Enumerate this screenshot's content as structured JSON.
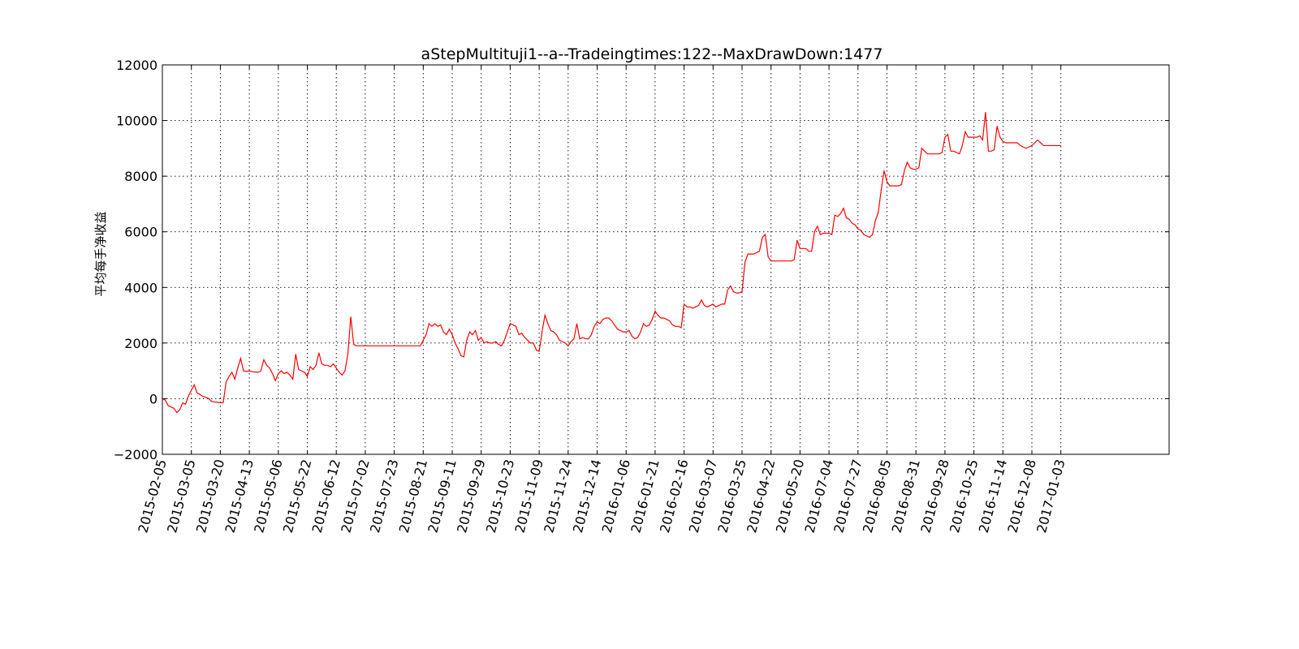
{
  "chart_data": {
    "type": "line",
    "title": "aStepMultituji1--a--Tradeingtimes:122--MaxDrawDown:1477",
    "xlabel": "",
    "ylabel": "平均每手净收益",
    "ylim": [
      -2000,
      12000
    ],
    "yticks": [
      -2000,
      0,
      2000,
      4000,
      6000,
      8000,
      10000,
      12000
    ],
    "ytick_labels": [
      "−2000",
      "0",
      "2000",
      "4000",
      "6000",
      "8000",
      "10000",
      "12000"
    ],
    "xlim": [
      0,
      35
    ],
    "xtick_labels": [
      "2015-02-05",
      "2015-03-05",
      "2015-03-20",
      "2015-04-13",
      "2015-05-06",
      "2015-05-22",
      "2015-06-12",
      "2015-07-02",
      "2015-07-23",
      "2015-08-21",
      "2015-09-11",
      "2015-09-29",
      "2015-10-23",
      "2015-11-09",
      "2015-11-24",
      "2015-12-14",
      "2016-01-06",
      "2016-01-21",
      "2016-02-16",
      "2016-03-07",
      "2016-03-25",
      "2016-04-22",
      "2016-05-20",
      "2016-07-04",
      "2016-07-27",
      "2016-08-05",
      "2016-08-31",
      "2016-09-28",
      "2016-10-25",
      "2016-11-14",
      "2016-12-08",
      "2017-01-03"
    ],
    "grid": true,
    "series": [
      {
        "name": "",
        "color": "#ff0000",
        "x": [
          0,
          0.1,
          0.2,
          0.3,
          0.4,
          0.5,
          0.6,
          0.7,
          0.8,
          0.9,
          1.0,
          1.1,
          1.2,
          1.3,
          1.4,
          1.5,
          1.6,
          1.7,
          1.8,
          1.9,
          2.0,
          2.1,
          2.2,
          2.3,
          2.4,
          2.5,
          2.6,
          2.7,
          2.8,
          2.9,
          3.0,
          3.1,
          3.2,
          3.3,
          3.4,
          3.5,
          3.6,
          3.7,
          3.8,
          3.9,
          4.0,
          4.1,
          4.2,
          4.3,
          4.4,
          4.5,
          4.6,
          4.7,
          4.8,
          4.9,
          5.0,
          5.1,
          5.2,
          5.3,
          5.4,
          5.5,
          5.6,
          5.7,
          5.8,
          5.9,
          6.0,
          6.1,
          6.2,
          6.3,
          6.4,
          6.5,
          6.6,
          6.7,
          6.8,
          6.9,
          7.0,
          7.05,
          7.1,
          7.2,
          7.5,
          8.0,
          8.5,
          8.9,
          9.0,
          9.1,
          9.2,
          9.3,
          9.4,
          9.5,
          9.6,
          9.7,
          9.8,
          9.9,
          10.0,
          10.1,
          10.2,
          10.3,
          10.4,
          10.5,
          10.6,
          10.7,
          10.8,
          10.9,
          11.0,
          11.1,
          11.2,
          11.3,
          11.4,
          11.5,
          11.6,
          11.7,
          11.8,
          11.9,
          12.0,
          12.1,
          12.2,
          12.3,
          12.4,
          12.5,
          12.6,
          12.7,
          12.8,
          12.9,
          13.0,
          13.1,
          13.2,
          13.3,
          13.4,
          13.5,
          13.6,
          13.7,
          13.8,
          13.9,
          14.0,
          14.1,
          14.2,
          14.3,
          14.4,
          14.5,
          14.6,
          14.7,
          14.8,
          14.9,
          15.0,
          15.1,
          15.2,
          15.3,
          15.4,
          15.5,
          15.6,
          15.7,
          15.8,
          15.9,
          16.0,
          16.1,
          16.2,
          16.3,
          16.4,
          16.5,
          16.6,
          16.7,
          16.8,
          16.9,
          17.0,
          17.1,
          17.2,
          17.3,
          17.4,
          17.5,
          17.6,
          17.7,
          17.8,
          17.9,
          18.0,
          18.1,
          18.2,
          18.3,
          18.4,
          18.5,
          18.6,
          18.7,
          18.8,
          18.9,
          19.0,
          19.1,
          19.2,
          19.3,
          19.4,
          19.5,
          19.6,
          19.7,
          19.8,
          19.9,
          20.0,
          20.1,
          20.2,
          20.3,
          20.4,
          20.5,
          20.6,
          20.7,
          20.8,
          20.9,
          21.0,
          21.1,
          21.2,
          21.3,
          21.4,
          21.5,
          21.6,
          21.7,
          21.8,
          21.9,
          22.0,
          22.1,
          22.2,
          22.3,
          22.4,
          22.5,
          22.6,
          22.7,
          22.8,
          22.9,
          23.0,
          23.1,
          23.2,
          23.3,
          23.4,
          23.5,
          23.6,
          23.7,
          23.8,
          23.9,
          24.0,
          24.1,
          24.2,
          24.3,
          24.4,
          24.5,
          24.6,
          24.7,
          24.8,
          24.9,
          25.0,
          25.1,
          25.2,
          25.3,
          25.4,
          25.5,
          25.6,
          25.7,
          25.8,
          25.9,
          26.0,
          26.1,
          26.2,
          26.3,
          26.4,
          26.5,
          26.6,
          26.7,
          26.8,
          26.9,
          27.0,
          27.1,
          27.2,
          27.3,
          27.4,
          27.5,
          27.6,
          27.7,
          27.8,
          27.9,
          28.0,
          28.1,
          28.2,
          28.3,
          28.4,
          28.5,
          28.6,
          28.7,
          28.8,
          28.9,
          29.0,
          29.1,
          29.2,
          29.3,
          29.4,
          29.5,
          29.6,
          29.7,
          29.8,
          29.9,
          30.0,
          30.2,
          30.4,
          30.6,
          30.8,
          31.0
        ],
        "y": [
          0,
          -50,
          -250,
          -300,
          -350,
          -500,
          -400,
          -150,
          -200,
          100,
          300,
          500,
          200,
          150,
          80,
          50,
          0,
          -100,
          -120,
          -130,
          -150,
          -140,
          600,
          800,
          950,
          700,
          1100,
          1450,
          1000,
          980,
          1000,
          970,
          960,
          950,
          1000,
          1400,
          1200,
          1100,
          900,
          650,
          900,
          1000,
          900,
          950,
          850,
          700,
          1600,
          1050,
          1000,
          950,
          800,
          1150,
          1050,
          1200,
          1650,
          1250,
          1200,
          1200,
          1150,
          1250,
          1100,
          950,
          850,
          1000,
          1600,
          2950,
          1950,
          1900,
          1900,
          1900,
          1900,
          1900,
          1900,
          1900,
          1900,
          1900,
          1900,
          1900,
          2100,
          2300,
          2700,
          2600,
          2700,
          2600,
          2650,
          2400,
          2300,
          2500,
          2300,
          2000,
          1800,
          1550,
          1500,
          2100,
          2400,
          2300,
          2450,
          2100,
          2200,
          2000,
          2050,
          2000,
          2000,
          2050,
          1950,
          1900,
          2100,
          2400,
          2700,
          2650,
          2600,
          2300,
          2350,
          2200,
          2100,
          2000,
          2000,
          1750,
          1700,
          2400,
          3000,
          2700,
          2450,
          2400,
          2300,
          2100,
          2050,
          2000,
          1900,
          2050,
          2150,
          2700,
          2150,
          2200,
          2150,
          2150,
          2300,
          2600,
          2750,
          2700,
          2850,
          2900,
          2900,
          2800,
          2650,
          2500,
          2450,
          2400,
          2400,
          2450,
          2250,
          2150,
          2200,
          2400,
          2700,
          2600,
          2650,
          2850,
          3150,
          3000,
          2900,
          2900,
          2850,
          2800,
          2650,
          2600,
          2600,
          2550,
          3400,
          3300,
          3300,
          3250,
          3300,
          3350,
          3550,
          3350,
          3300,
          3350,
          3400,
          3300,
          3350,
          3400,
          3400,
          3900,
          4050,
          3850,
          3800,
          3800,
          3850,
          4900,
          5200,
          5200,
          5200,
          5250,
          5300,
          5800,
          5900,
          5100,
          4950,
          4950,
          4950,
          4950,
          4950,
          4950,
          4950,
          4950,
          5000,
          5700,
          5400,
          5400,
          5400,
          5300,
          5300,
          6000,
          6200,
          5900,
          5950,
          5950,
          5950,
          5900,
          6600,
          6550,
          6650,
          6850,
          6500,
          6450,
          6300,
          6250,
          6100,
          6050,
          5900,
          5850,
          5800,
          5900,
          6400,
          6700,
          7500,
          8200,
          7800,
          7650,
          7650,
          7650,
          7650,
          7700,
          8200,
          8500,
          8300,
          8250,
          8250,
          8300,
          9000,
          8900,
          8800,
          8800,
          8800,
          8800,
          8800,
          8850,
          9400,
          9500,
          8900,
          8900,
          8850,
          8800,
          9100,
          9600,
          9400,
          9400,
          9400,
          9400,
          9450,
          9300,
          10300,
          8900,
          8900,
          8950,
          9800,
          9400,
          9250,
          9200,
          9200,
          9200,
          9200,
          9200,
          9100,
          9050,
          9000,
          9050,
          9100,
          9300,
          9100,
          9100,
          9100,
          9100
        ]
      }
    ]
  }
}
